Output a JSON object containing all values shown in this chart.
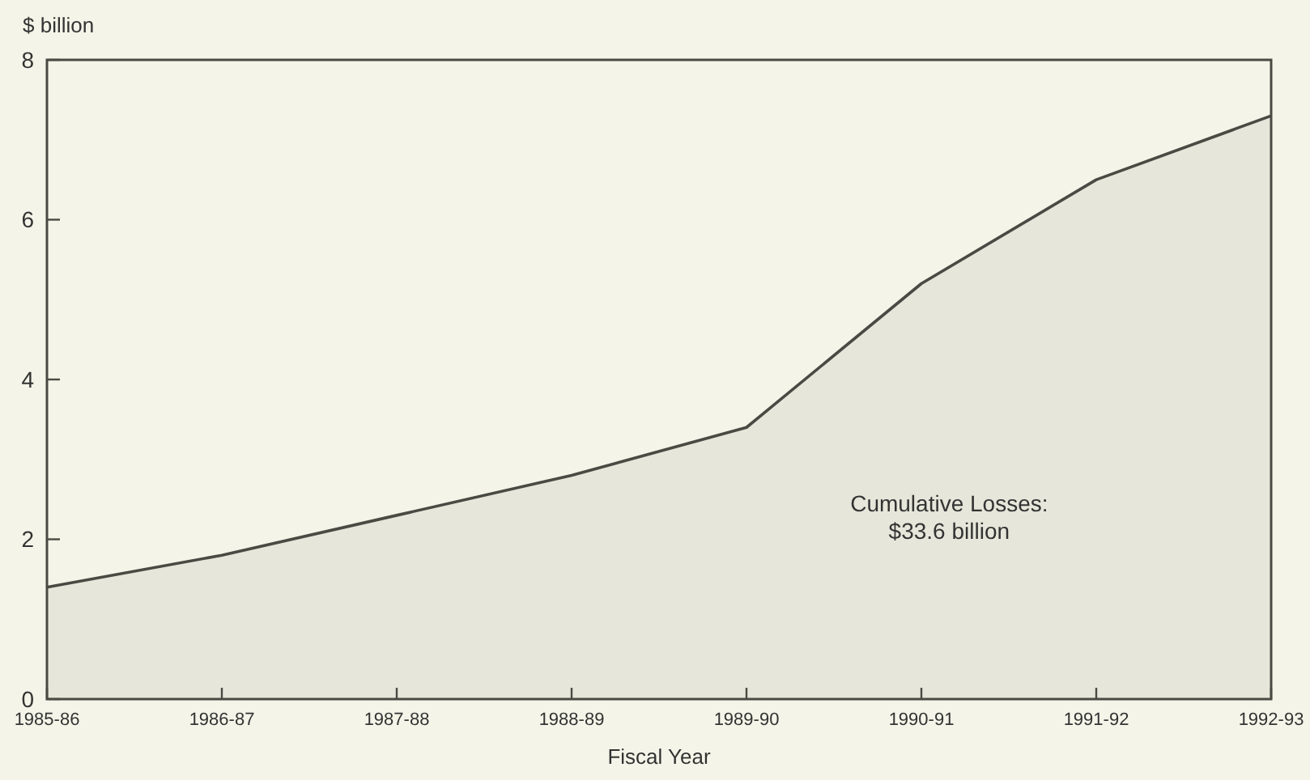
{
  "chart_data": {
    "type": "area",
    "xlabel": "Fiscal Year",
    "ylabel": "$ billion",
    "categories": [
      "1985-86",
      "1986-87",
      "1987-88",
      "1988-89",
      "1989-90",
      "1990-91",
      "1991-92",
      "1992-93"
    ],
    "series": [
      {
        "color": "#4a4a44",
        "values": [
          1.4,
          1.8,
          2.3,
          2.8,
          3.4,
          5.2,
          6.5,
          7.3
        ]
      }
    ],
    "ylim": [
      0,
      8
    ],
    "yticks": [
      0,
      2,
      4,
      6,
      8
    ],
    "grid": false,
    "annotations": [
      "Cumulative Losses:\n$33.6 billion"
    ]
  }
}
